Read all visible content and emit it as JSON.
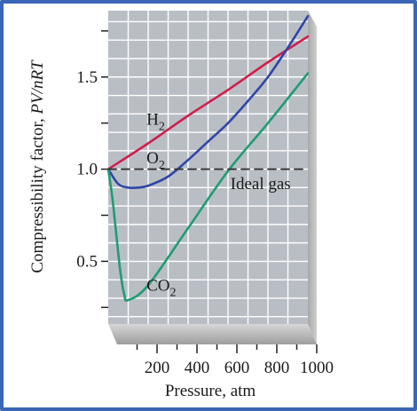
{
  "chart_data": {
    "type": "line",
    "xlabel": "Pressure, atm",
    "ylabel_main": "Compressibility factor, ",
    "ylabel_italic": "PV/nRT",
    "x_ticks": [
      200,
      400,
      600,
      800,
      1000
    ],
    "x_tick_labels": [
      "200",
      "400",
      "600",
      "800",
      "1000"
    ],
    "y_ticks": [
      0.5,
      1.0,
      1.5
    ],
    "y_tick_labels": [
      "0.5",
      "1.0",
      "1.5"
    ],
    "xlim": [
      0,
      1000
    ],
    "ylim": [
      0.16,
      1.86
    ],
    "grid": true,
    "series": [
      {
        "name": "H2",
        "color": "#d01f4b",
        "x": [
          0,
          200,
          400,
          600,
          800,
          1000
        ],
        "y": [
          1.0,
          1.14,
          1.29,
          1.43,
          1.58,
          1.72
        ]
      },
      {
        "name": "O2",
        "color": "#2f46a8",
        "x": [
          0,
          50,
          100,
          150,
          200,
          300,
          400,
          500,
          600,
          700,
          800,
          900,
          1000
        ],
        "y": [
          1.0,
          0.92,
          0.9,
          0.9,
          0.91,
          0.96,
          1.05,
          1.15,
          1.25,
          1.37,
          1.5,
          1.66,
          1.83
        ]
      },
      {
        "name": "CO2",
        "color": "#1f9c72",
        "x": [
          0,
          20,
          40,
          60,
          80,
          100,
          200,
          400,
          600,
          800,
          1000
        ],
        "y": [
          1.0,
          0.85,
          0.65,
          0.45,
          0.32,
          0.29,
          0.37,
          0.68,
          0.99,
          1.25,
          1.52
        ]
      },
      {
        "name": "Ideal gas",
        "color": "#333333",
        "dashed": true,
        "x": [
          0,
          1000
        ],
        "y": [
          1.0,
          1.0
        ]
      }
    ],
    "annotations": [
      {
        "base": "H",
        "sub": "2",
        "x": 245,
        "y": 1.27
      },
      {
        "base": "O",
        "sub": "2",
        "x": 245,
        "y": 1.06
      },
      {
        "base": "Ideal gas",
        "sub": "",
        "x": 665,
        "y": 0.92
      },
      {
        "base": "CO",
        "sub": "2",
        "x": 245,
        "y": 0.37
      }
    ]
  }
}
